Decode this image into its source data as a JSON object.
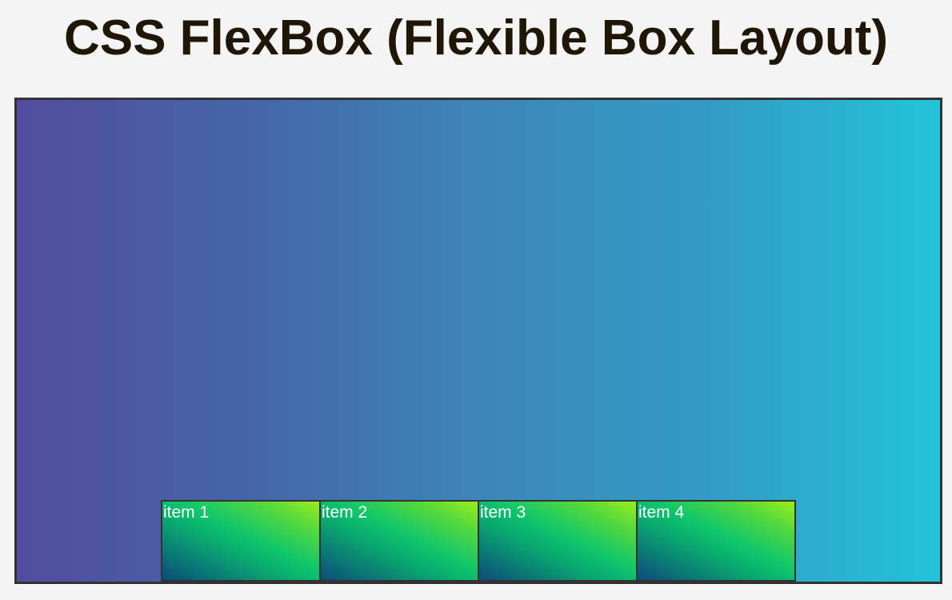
{
  "page": {
    "title": "CSS FlexBox (Flexible Box Layout)"
  },
  "container": {
    "items": [
      {
        "label": "item 1"
      },
      {
        "label": "item 2"
      },
      {
        "label": "item 3"
      },
      {
        "label": "item 4"
      }
    ]
  },
  "colors": {
    "page_background": "#f4f4f4",
    "title_text": "#1f1606",
    "container_gradient_start": "#534c9f",
    "container_gradient_end": "#22c4d9",
    "item_gradient_start": "#0b4c7a",
    "item_gradient_end": "#9aee1c",
    "border": "#333333",
    "item_text": "#ffffff"
  }
}
